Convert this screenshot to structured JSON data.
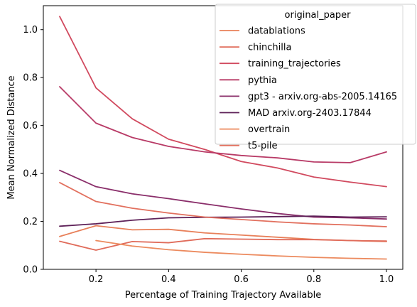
{
  "chart_data": {
    "type": "line",
    "xlabel": "Percentage of Training Trajectory Available",
    "ylabel": "Mean Normalized Distance",
    "xlim": [
      0.055,
      1.045
    ],
    "ylim": [
      0.0,
      1.1
    ],
    "xticks": [
      "0.2",
      "0.4",
      "0.6",
      "0.8",
      "1.0"
    ],
    "xtick_values": [
      0.2,
      0.4,
      0.6,
      0.8,
      1.0
    ],
    "yticks": [
      "0.0",
      "0.2",
      "0.4",
      "0.6",
      "0.8",
      "1.0"
    ],
    "ytick_values": [
      0.0,
      0.2,
      0.4,
      0.6,
      0.8,
      1.0
    ],
    "grid": false,
    "legend": {
      "title": "original_paper",
      "placement": "top-right"
    },
    "series": [
      {
        "name": "datablations",
        "color": "#e8805a",
        "x": [
          0.1,
          0.2,
          0.3,
          0.4,
          0.5,
          0.6,
          0.7,
          0.8,
          0.9,
          1.0
        ],
        "y": [
          0.137,
          0.182,
          0.165,
          0.167,
          0.152,
          0.143,
          0.134,
          0.125,
          0.12,
          0.116
        ]
      },
      {
        "name": "chinchilla",
        "color": "#e06b5a",
        "x": [
          0.1,
          0.2,
          0.3,
          0.4,
          0.5,
          0.6,
          0.7,
          0.8,
          0.9,
          1.0
        ],
        "y": [
          0.117,
          0.08,
          0.116,
          0.111,
          0.128,
          0.126,
          0.124,
          0.124,
          0.12,
          0.118
        ]
      },
      {
        "name": "training_trajectories",
        "color": "#d14a5f",
        "x": [
          0.1,
          0.2,
          0.3,
          0.4,
          0.5,
          0.6,
          0.7,
          0.8,
          0.9,
          1.0
        ],
        "y": [
          1.055,
          0.757,
          0.628,
          0.543,
          0.5,
          0.45,
          0.423,
          0.385,
          0.364,
          0.345
        ]
      },
      {
        "name": "pythia",
        "color": "#b83a66",
        "x": [
          0.1,
          0.2,
          0.3,
          0.4,
          0.5,
          0.6,
          0.7,
          0.8,
          0.9,
          1.0
        ],
        "y": [
          0.762,
          0.61,
          0.55,
          0.513,
          0.49,
          0.475,
          0.465,
          0.448,
          0.445,
          0.49
        ]
      },
      {
        "name": "gpt3 - arxiv.org-abs-2005.14165",
        "color": "#8a2e6a",
        "x": [
          0.1,
          0.2,
          0.3,
          0.4,
          0.5,
          0.6,
          0.7,
          0.8,
          0.9,
          1.0
        ],
        "y": [
          0.413,
          0.345,
          0.315,
          0.295,
          0.273,
          0.252,
          0.233,
          0.218,
          0.215,
          0.21
        ]
      },
      {
        "name": "MAD arxiv.org-2403.17844",
        "color": "#5e2158",
        "x": [
          0.1,
          0.2,
          0.3,
          0.4,
          0.5,
          0.6,
          0.7,
          0.8,
          0.9,
          1.0
        ],
        "y": [
          0.18,
          0.19,
          0.205,
          0.215,
          0.217,
          0.218,
          0.22,
          0.222,
          0.218,
          0.219
        ]
      },
      {
        "name": "overtrain",
        "color": "#ec8a5e",
        "x": [
          0.2,
          0.3,
          0.4,
          0.5,
          0.6,
          0.7,
          0.8,
          0.9,
          1.0
        ],
        "y": [
          0.12,
          0.097,
          0.082,
          0.071,
          0.063,
          0.056,
          0.05,
          0.046,
          0.043
        ]
      },
      {
        "name": "t5-pile",
        "color": "#e2705e",
        "x": [
          0.1,
          0.2,
          0.3,
          0.4,
          0.5,
          0.6,
          0.7,
          0.8,
          0.9,
          1.0
        ],
        "y": [
          0.362,
          0.283,
          0.255,
          0.235,
          0.218,
          0.208,
          0.198,
          0.19,
          0.185,
          0.178
        ]
      }
    ]
  }
}
